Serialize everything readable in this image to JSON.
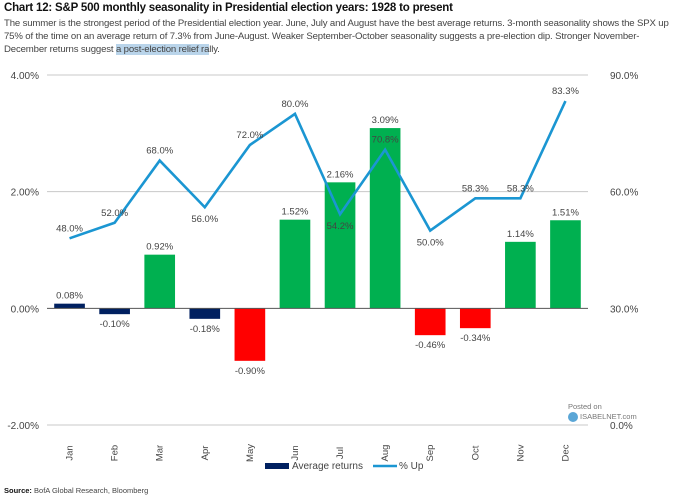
{
  "header": {
    "title": "Chart 12: S&P 500 monthly seasonality in Presidential election years: 1928 to present",
    "description_before": "The summer is the strongest period of the Presidential election year. June, July and August have the best average returns. 3-month seasonality shows the SPX up 75% of the time on an average return of 7.3% from June-August. Weaker September-October seasonality suggests a pre-election dip. Stronger November-December returns suggest ",
    "description_highlight": "a post-election relief ra",
    "description_after": "lly."
  },
  "source": {
    "label": "Source:",
    "text": " BofA Global Research, Bloomberg"
  },
  "watermark": {
    "line1": "Posted on",
    "line2": "ISABELNET.com"
  },
  "colors": {
    "positive": "#00b050",
    "negative": "#ff0000",
    "navy": "#002060",
    "line": "#1b96d2",
    "grid": "#c8c8c8"
  },
  "chart_data": {
    "type": "bar",
    "title": "Chart 12: S&P 500 monthly seasonality in Presidential election years: 1928 to present",
    "categories": [
      "Jan",
      "Feb",
      "Mar",
      "Apr",
      "May",
      "Jun",
      "Jul",
      "Aug",
      "Sep",
      "Oct",
      "Nov",
      "Dec"
    ],
    "series": [
      {
        "name": "Average returns",
        "type": "bar",
        "axis": "left",
        "values": [
          0.08,
          -0.1,
          0.92,
          -0.18,
          -0.9,
          1.52,
          2.16,
          3.09,
          -0.46,
          -0.34,
          1.14,
          1.51
        ],
        "labels": [
          "0.08%",
          "-0.10%",
          "0.92%",
          "-0.18%",
          "-0.90%",
          "1.52%",
          "2.16%",
          "3.09%",
          "-0.46%",
          "-0.34%",
          "1.14%",
          "1.51%"
        ],
        "bar_colors": [
          "navy",
          "navy",
          "positive",
          "navy",
          "negative",
          "positive",
          "positive",
          "positive",
          "negative",
          "negative",
          "positive",
          "positive"
        ]
      },
      {
        "name": "% Up",
        "type": "line",
        "axis": "right",
        "values": [
          48.0,
          52.0,
          68.0,
          56.0,
          72.0,
          80.0,
          54.2,
          70.8,
          50.0,
          58.3,
          58.3,
          83.3
        ],
        "labels": [
          "48.0%",
          "52.0%",
          "68.0%",
          "56.0%",
          "72.0%",
          "80.0%",
          "54.2%",
          "70.8%",
          "50.0%",
          "58.3%",
          "58.3%",
          "83.3%"
        ]
      }
    ],
    "left_axis": {
      "ylim": [
        -2,
        4
      ],
      "ticks": [
        "4.00%",
        "2.00%",
        "0.00%",
        "-2.00%"
      ],
      "tick_values": [
        4,
        2,
        0,
        -2
      ]
    },
    "right_axis": {
      "ylim": [
        0,
        90
      ],
      "ticks": [
        "90.0%",
        "60.0%",
        "30.0%",
        "0.0%"
      ],
      "tick_values": [
        90,
        60,
        30,
        0
      ]
    },
    "xlabel": "",
    "ylabel": "",
    "grid": true,
    "legend": {
      "position": "bottom-center",
      "entries": [
        "Average returns",
        "% Up"
      ]
    }
  }
}
